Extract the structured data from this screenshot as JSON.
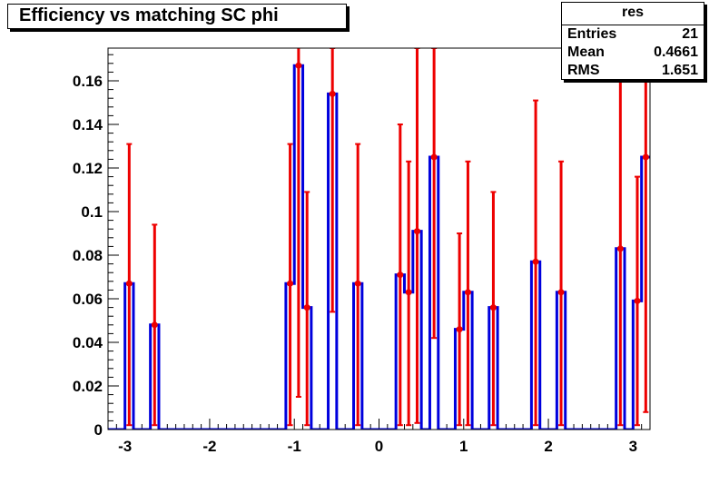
{
  "title": "Efficiency vs matching SC phi",
  "stats": {
    "name": "res",
    "rows": [
      {
        "label": "Entries",
        "value": "21"
      },
      {
        "label": "Mean",
        "value": "0.4661"
      },
      {
        "label": "RMS",
        "value": "1.651"
      }
    ]
  },
  "colors": {
    "histogram": "#0000dd",
    "error_bars": "#ee0000",
    "axis": "#000000"
  },
  "chart_data": {
    "type": "bar",
    "title": "Efficiency vs matching SC phi",
    "xlabel": "",
    "ylabel": "",
    "xlim": [
      -3.2,
      3.2
    ],
    "ylim": [
      0,
      0.175
    ],
    "grid": false,
    "legend": "none",
    "x_ticks": [
      "-3",
      "-2",
      "-1",
      "0",
      "1",
      "2",
      "3"
    ],
    "y_ticks": [
      "0",
      "0.02",
      "0.04",
      "0.06",
      "0.08",
      "0.1",
      "0.12",
      "0.14",
      "0.16"
    ],
    "bin_width": 0.1,
    "points": [
      {
        "x": -3.0,
        "y": 0.067,
        "err_lo": 0.065,
        "err_hi": 0.064
      },
      {
        "x": -2.7,
        "y": 0.048,
        "err_lo": 0.046,
        "err_hi": 0.046
      },
      {
        "x": -1.1,
        "y": 0.067,
        "err_lo": 0.065,
        "err_hi": 0.064
      },
      {
        "x": -1.0,
        "y": 0.167,
        "err_lo": 0.152,
        "err_hi": 0.01
      },
      {
        "x": -0.9,
        "y": 0.056,
        "err_lo": 0.054,
        "err_hi": 0.053
      },
      {
        "x": -0.6,
        "y": 0.154,
        "err_lo": 0.1,
        "err_hi": 0.021
      },
      {
        "x": -0.3,
        "y": 0.067,
        "err_lo": 0.065,
        "err_hi": 0.064
      },
      {
        "x": 0.2,
        "y": 0.071,
        "err_lo": 0.069,
        "err_hi": 0.069
      },
      {
        "x": 0.3,
        "y": 0.063,
        "err_lo": 0.061,
        "err_hi": 0.06
      },
      {
        "x": 0.4,
        "y": 0.091,
        "err_lo": 0.088,
        "err_hi": 0.084
      },
      {
        "x": 0.6,
        "y": 0.125,
        "err_lo": 0.083,
        "err_hi": 0.05
      },
      {
        "x": 0.9,
        "y": 0.046,
        "err_lo": 0.044,
        "err_hi": 0.044
      },
      {
        "x": 1.0,
        "y": 0.063,
        "err_lo": 0.061,
        "err_hi": 0.06
      },
      {
        "x": 1.3,
        "y": 0.056,
        "err_lo": 0.054,
        "err_hi": 0.053
      },
      {
        "x": 1.8,
        "y": 0.077,
        "err_lo": 0.075,
        "err_hi": 0.074
      },
      {
        "x": 2.1,
        "y": 0.063,
        "err_lo": 0.061,
        "err_hi": 0.06
      },
      {
        "x": 2.8,
        "y": 0.083,
        "err_lo": 0.081,
        "err_hi": 0.08
      },
      {
        "x": 3.0,
        "y": 0.059,
        "err_lo": 0.057,
        "err_hi": 0.057
      },
      {
        "x": 3.1,
        "y": 0.125,
        "err_lo": 0.117,
        "err_hi": 0.05
      }
    ]
  }
}
